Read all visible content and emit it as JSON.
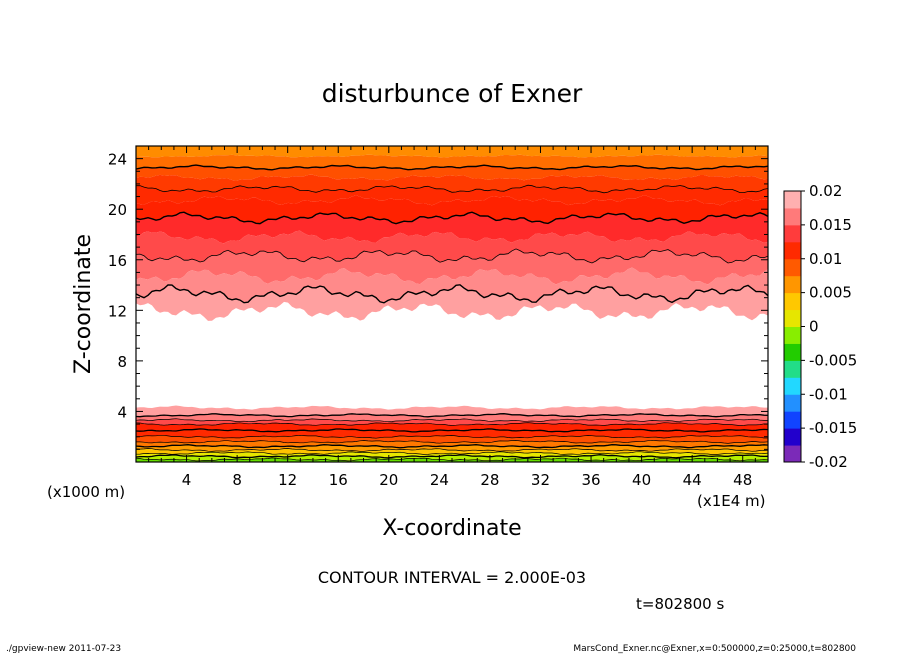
{
  "chart_data": {
    "type": "heatmap",
    "title": "disturbunce of Exner",
    "xlabel": "X-coordinate",
    "ylabel": "Z-coordinate",
    "x_unit": "(x1E4 m)",
    "y_unit": "(x1000 m)",
    "xlim": [
      0,
      50
    ],
    "ylim": [
      0,
      25
    ],
    "x_ticks": [
      4,
      8,
      12,
      16,
      20,
      24,
      28,
      32,
      36,
      40,
      44,
      48
    ],
    "y_ticks": [
      4,
      8,
      12,
      16,
      20,
      24
    ],
    "contour_interval_text": "CONTOUR INTERVAL = 2.000E-03",
    "time_text": "t=802800 s",
    "colorbar": {
      "ticks": [
        "0.02",
        "0.015",
        "0.01",
        "0.005",
        "0",
        "-0.005",
        "-0.01",
        "-0.015",
        "-0.02"
      ],
      "min": -0.02,
      "max": 0.02,
      "colors": [
        "#7b2ab8",
        "#2200cc",
        "#1144ff",
        "#2290ff",
        "#22d8ff",
        "#22dd88",
        "#22cc00",
        "#88ee00",
        "#e6e600",
        "#ffc800",
        "#ff9600",
        "#ff5a00",
        "#ff2a00",
        "#ff3c3c",
        "#ff7a7a",
        "#ffb0b0"
      ]
    },
    "top_band_colors": [
      "#ff8c00",
      "#ff6e00",
      "#ff5000",
      "#ff3a00",
      "#ff2a00",
      "#ff2200",
      "#ff2a2a",
      "#ff4a4a",
      "#ff6a6a",
      "#ff8a8a",
      "#ffa0a0"
    ],
    "bottom_band_colors": [
      "#ffa0a0",
      "#ff7a7a",
      "#ff4a4a",
      "#ff2200",
      "#ff2a00",
      "#ff5000",
      "#ff7800",
      "#ff9c00",
      "#ffc400",
      "#e8e800",
      "#b4f000",
      "#66dd00"
    ]
  },
  "footer": {
    "left": "./gpview-new   2011-07-23",
    "right": "MarsCond_Exner.nc@Exner,x=0:500000,z=0:25000,t=802800"
  }
}
